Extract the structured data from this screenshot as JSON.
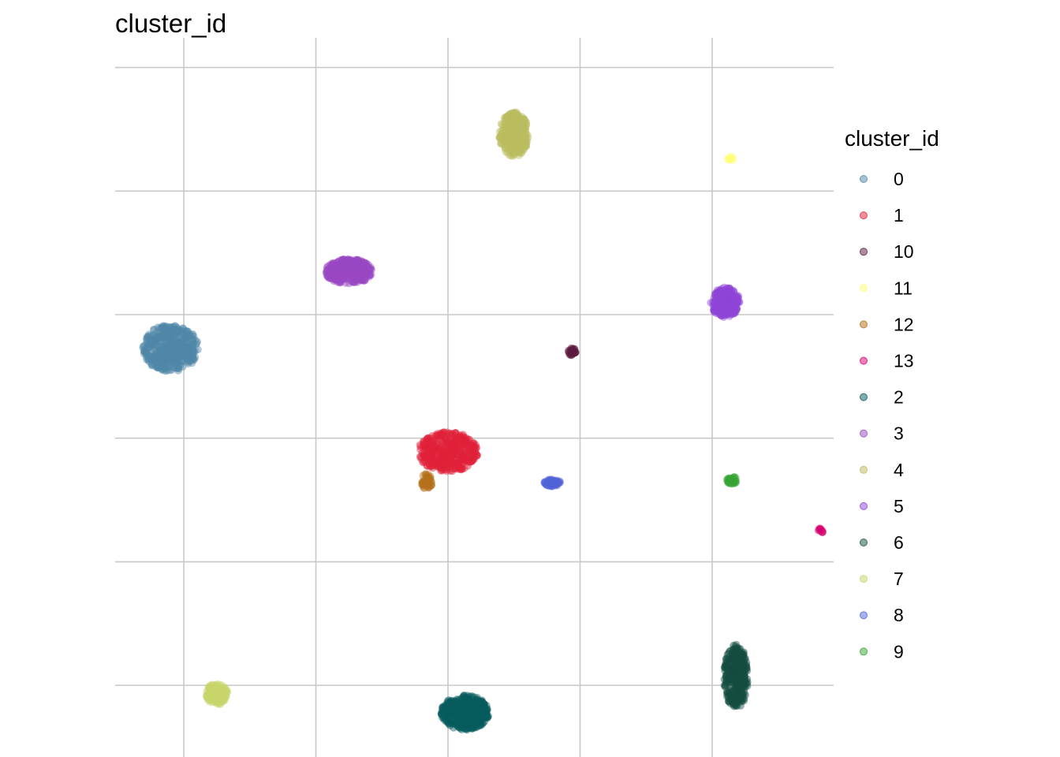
{
  "chart_data": {
    "type": "scatter",
    "title": "cluster_id",
    "xlabel": "",
    "ylabel": "",
    "grid": true,
    "legend": {
      "title": "cluster_id",
      "placement": "right"
    },
    "xlim": [
      -0.52,
      4.92
    ],
    "ylim": [
      -0.58,
      5.24
    ],
    "series": [
      {
        "name": "0",
        "color": "#4f88a8",
        "cx": -0.1,
        "cy": 2.73,
        "rx": 0.21,
        "ry": 0.19,
        "n": 420
      },
      {
        "name": "1",
        "color": "#e0223a",
        "cx": 2.0,
        "cy": 1.89,
        "rx": 0.23,
        "ry": 0.16,
        "n": 420
      },
      {
        "name": "10",
        "color": "#5e1a40",
        "cx": 2.94,
        "cy": 2.7,
        "rx": 0.03,
        "ry": 0.03,
        "n": 30
      },
      {
        "name": "11",
        "color": "#ffff7a",
        "cx": 4.14,
        "cy": 4.26,
        "rx": 0.02,
        "ry": 0.02,
        "n": 12
      },
      {
        "name": "12",
        "color": "#b3701a",
        "cx": 1.84,
        "cy": 1.65,
        "rx": 0.04,
        "ry": 0.07,
        "n": 40
      },
      {
        "name": "13",
        "color": "#d4006e",
        "cx": 4.82,
        "cy": 1.25,
        "rx": 0.02,
        "ry": 0.02,
        "n": 10
      },
      {
        "name": "2",
        "color": "#065b5d",
        "cx": 2.13,
        "cy": -0.22,
        "rx": 0.18,
        "ry": 0.14,
        "n": 380
      },
      {
        "name": "3",
        "color": "#9a48c4",
        "cx": 1.25,
        "cy": 3.35,
        "rx": 0.18,
        "ry": 0.1,
        "n": 300
      },
      {
        "name": "4",
        "color": "#bbbd5f",
        "cx": 2.5,
        "cy": 4.46,
        "rx": 0.11,
        "ry": 0.18,
        "n": 260
      },
      {
        "name": "5",
        "color": "#8f44d6",
        "cx": 4.1,
        "cy": 3.1,
        "rx": 0.11,
        "ry": 0.12,
        "n": 240
      },
      {
        "name": "6",
        "color": "#154d40",
        "cx": 4.18,
        "cy": 0.07,
        "rx": 0.09,
        "ry": 0.26,
        "n": 300
      },
      {
        "name": "7",
        "color": "#c8d46a",
        "cx": 0.25,
        "cy": -0.07,
        "rx": 0.08,
        "ry": 0.09,
        "n": 120
      },
      {
        "name": "8",
        "color": "#5064d8",
        "cx": 2.79,
        "cy": 1.64,
        "rx": 0.06,
        "ry": 0.03,
        "n": 60
      },
      {
        "name": "9",
        "color": "#37a436",
        "cx": 4.15,
        "cy": 1.66,
        "rx": 0.04,
        "ry": 0.03,
        "n": 40
      }
    ]
  }
}
